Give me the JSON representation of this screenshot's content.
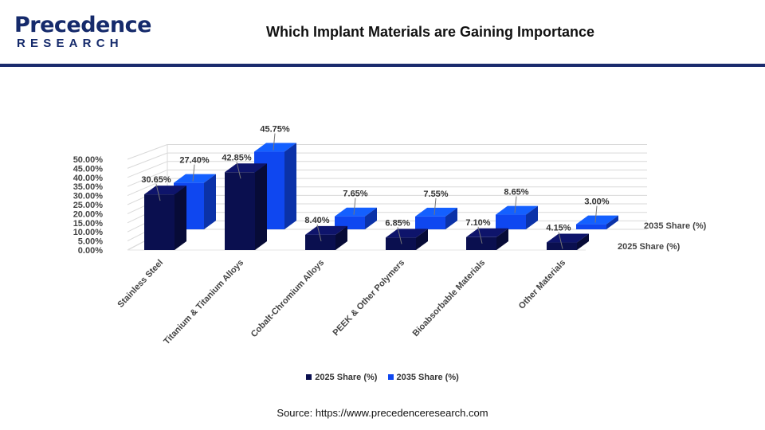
{
  "logo": {
    "top_text": "Precedence",
    "bottom_text": "RESEARCH"
  },
  "title": "Which Implant Materials are Gaining Importance",
  "source": "Source: https://www.precedenceresearch.com",
  "colors": {
    "series_2025": "#0a0f4f",
    "series_2035": "#0f47f0",
    "brand": "#152a6b"
  },
  "chart_data": {
    "type": "bar",
    "categories": [
      "Stainless Steel",
      "Titanium & Titanium Alloys",
      "Cobalt-Chromium Alloys",
      "PEEK & Other Polymers",
      "Bioabsorbable Materials",
      "Other Materials"
    ],
    "series": [
      {
        "name": "2025 Share (%)",
        "values": [
          30.65,
          42.85,
          8.4,
          6.85,
          7.1,
          4.15
        ],
        "labels": [
          "30.65%",
          "42.85%",
          "8.40%",
          "6.85%",
          "7.10%",
          "4.15%"
        ]
      },
      {
        "name": "2035 Share (%)",
        "values": [
          27.4,
          45.75,
          7.65,
          7.55,
          8.65,
          3.0
        ],
        "labels": [
          "27.40%",
          "45.75%",
          "7.65%",
          "7.55%",
          "8.65%",
          "3.00%"
        ]
      }
    ],
    "yticks": [
      "0.00%",
      "5.00%",
      "10.00%",
      "15.00%",
      "20.00%",
      "25.00%",
      "30.00%",
      "35.00%",
      "40.00%",
      "45.00%",
      "50.00%"
    ],
    "ylim": [
      0,
      50
    ],
    "grid": true,
    "legend_position": "bottom",
    "three_d": true
  }
}
